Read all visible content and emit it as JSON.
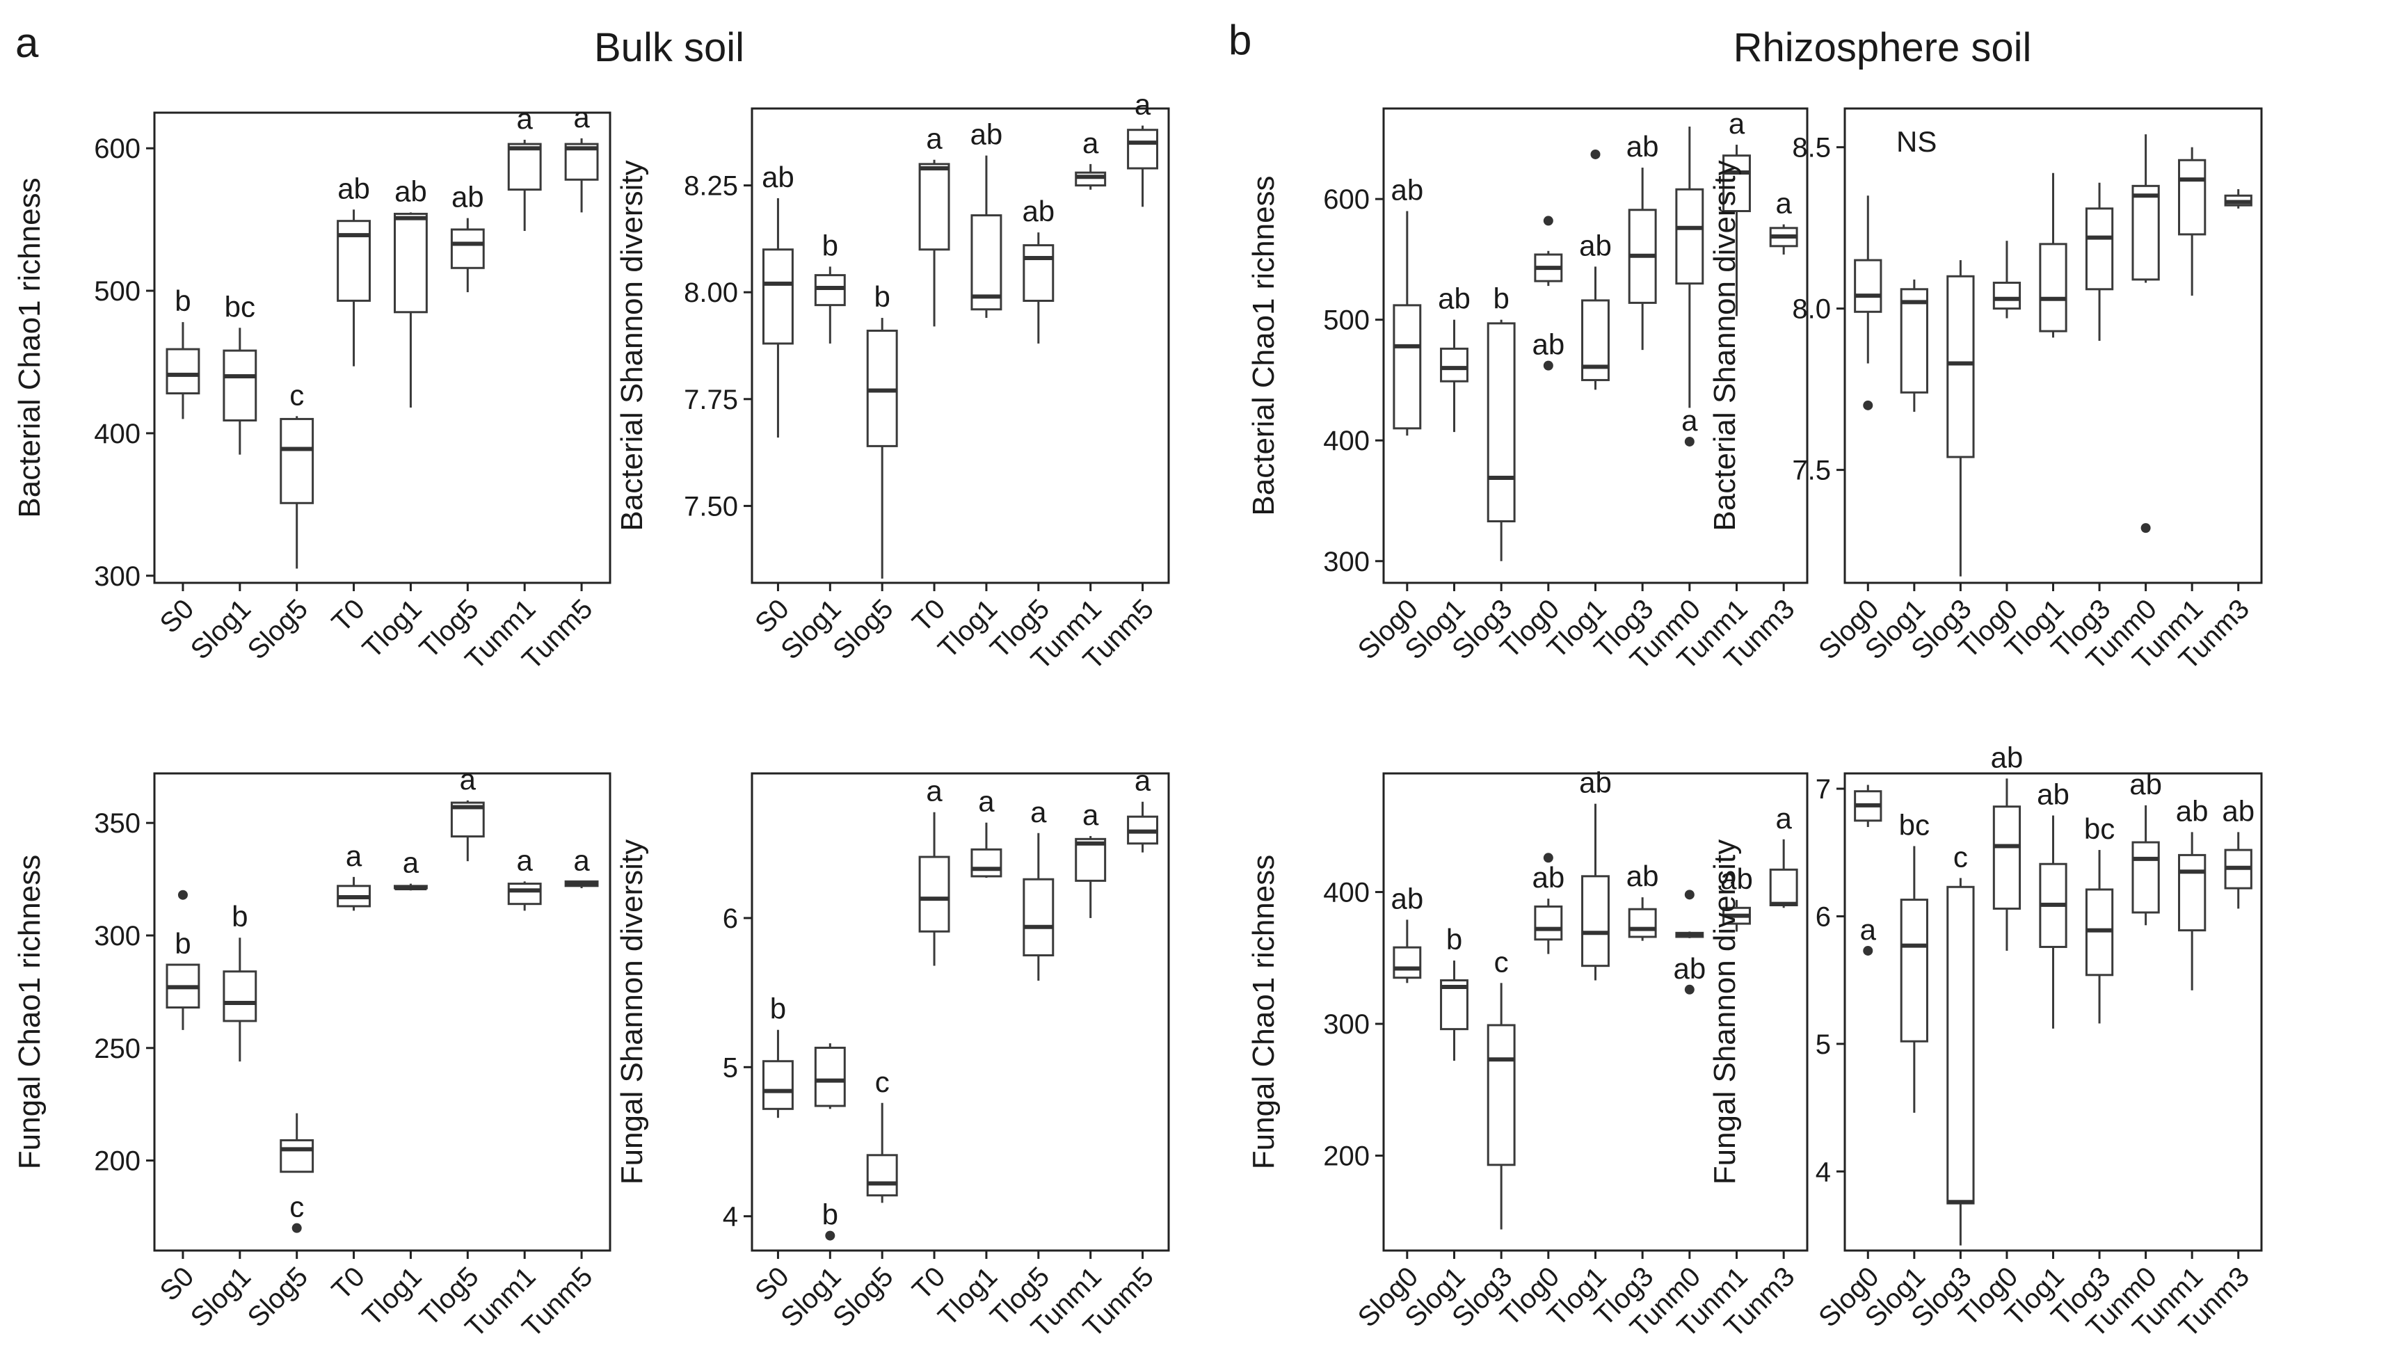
{
  "panels": {
    "a": {
      "letter": "a",
      "title": "Bulk soil"
    },
    "b": {
      "letter": "b",
      "title": "Rhizosphere soil"
    }
  },
  "chart_data": [
    {
      "id": "bulk-bacterial-chao1",
      "type": "box",
      "panel": "a",
      "ylabel": "Bacterial Chao1 richness",
      "ylim": [
        295,
        625
      ],
      "yticks": [
        300,
        400,
        500,
        600
      ],
      "categories": [
        "S0",
        "Slog1",
        "Slog5",
        "T0",
        "Tlog1",
        "Tlog5",
        "Tunm1",
        "Tunm5"
      ],
      "boxes": [
        {
          "min": 410,
          "q1": 428,
          "median": 441,
          "q3": 459,
          "max": 478,
          "outliers": [],
          "label": "b"
        },
        {
          "min": 385,
          "q1": 409,
          "median": 440,
          "q3": 458,
          "max": 474,
          "outliers": [],
          "label": "bc"
        },
        {
          "min": 305,
          "q1": 351,
          "median": 389,
          "q3": 410,
          "max": 412,
          "outliers": [],
          "label": "c"
        },
        {
          "min": 447,
          "q1": 493,
          "median": 539,
          "q3": 549,
          "max": 557,
          "outliers": [],
          "label": "ab"
        },
        {
          "min": 418,
          "q1": 485,
          "median": 551,
          "q3": 554,
          "max": 555,
          "outliers": [],
          "label": "ab"
        },
        {
          "min": 499,
          "q1": 516,
          "median": 533,
          "q3": 543,
          "max": 551,
          "outliers": [],
          "label": "ab"
        },
        {
          "min": 542,
          "q1": 571,
          "median": 600,
          "q3": 603,
          "max": 606,
          "outliers": [],
          "label": "a"
        },
        {
          "min": 555,
          "q1": 578,
          "median": 600,
          "q3": 603,
          "max": 607,
          "outliers": [],
          "label": "a"
        }
      ]
    },
    {
      "id": "bulk-bacterial-shannon",
      "type": "box",
      "panel": "a",
      "ylabel": "Bacterial Shannon diversity",
      "ylim": [
        7.32,
        8.43
      ],
      "yticks": [
        7.5,
        7.75,
        8.0,
        8.25
      ],
      "yticklabels": [
        "7.50",
        "7.75",
        "8.00",
        "8.25"
      ],
      "categories": [
        "S0",
        "Slog1",
        "Slog5",
        "T0",
        "Tlog1",
        "Tlog5",
        "Tunm1",
        "Tunm5"
      ],
      "boxes": [
        {
          "min": 7.66,
          "q1": 7.88,
          "median": 8.02,
          "q3": 8.1,
          "max": 8.22,
          "outliers": [],
          "label": "ab"
        },
        {
          "min": 7.88,
          "q1": 7.97,
          "median": 8.01,
          "q3": 8.04,
          "max": 8.06,
          "outliers": [],
          "label": "b"
        },
        {
          "min": 7.33,
          "q1": 7.64,
          "median": 7.77,
          "q3": 7.91,
          "max": 7.94,
          "outliers": [],
          "label": "b"
        },
        {
          "min": 7.92,
          "q1": 8.1,
          "median": 8.29,
          "q3": 8.3,
          "max": 8.31,
          "outliers": [],
          "label": "a"
        },
        {
          "min": 7.94,
          "q1": 7.96,
          "median": 7.99,
          "q3": 8.18,
          "max": 8.32,
          "outliers": [],
          "label": "ab"
        },
        {
          "min": 7.88,
          "q1": 7.98,
          "median": 8.08,
          "q3": 8.11,
          "max": 8.14,
          "outliers": [],
          "label": "ab"
        },
        {
          "min": 8.24,
          "q1": 8.25,
          "median": 8.27,
          "q3": 8.28,
          "max": 8.3,
          "outliers": [],
          "label": "a"
        },
        {
          "min": 8.2,
          "q1": 8.29,
          "median": 8.35,
          "q3": 8.38,
          "max": 8.39,
          "outliers": [],
          "label": "a"
        }
      ]
    },
    {
      "id": "rhizo-bacterial-chao1",
      "type": "box",
      "panel": "b",
      "ylabel": "Bacterial Chao1 richness",
      "ylim": [
        282,
        675
      ],
      "yticks": [
        300,
        400,
        500,
        600
      ],
      "categories": [
        "Slog0",
        "Slog1",
        "Slog3",
        "Tlog0",
        "Tlog1",
        "Tlog3",
        "Tunm0",
        "Tunm1",
        "Tunm3"
      ],
      "boxes": [
        {
          "min": 404,
          "q1": 410,
          "median": 478,
          "q3": 512,
          "max": 590,
          "outliers": [],
          "label": "ab"
        },
        {
          "min": 407,
          "q1": 449,
          "median": 460,
          "q3": 476,
          "max": 500,
          "outliers": [],
          "label": "ab"
        },
        {
          "min": 300,
          "q1": 333,
          "median": 369,
          "q3": 497,
          "max": 500,
          "outliers": [],
          "label": "b"
        },
        {
          "min": 528,
          "q1": 532,
          "median": 543,
          "q3": 554,
          "max": 557,
          "outliers": [
            582,
            462
          ],
          "label": "ab"
        },
        {
          "min": 442,
          "q1": 450,
          "median": 461,
          "q3": 516,
          "max": 544,
          "outliers": [
            637
          ],
          "label": "ab"
        },
        {
          "min": 475,
          "q1": 514,
          "median": 553,
          "q3": 591,
          "max": 626,
          "outliers": [],
          "label": "ab"
        },
        {
          "min": 427,
          "q1": 530,
          "median": 576,
          "q3": 608,
          "max": 660,
          "outliers": [
            399
          ],
          "label": "a"
        },
        {
          "min": 503,
          "q1": 590,
          "median": 622,
          "q3": 636,
          "max": 645,
          "outliers": [],
          "label": "a"
        },
        {
          "min": 554,
          "q1": 561,
          "median": 569,
          "q3": 576,
          "max": 579,
          "outliers": [],
          "label": "a"
        }
      ]
    },
    {
      "id": "rhizo-bacterial-shannon",
      "type": "box",
      "panel": "b",
      "ylabel": "Bacterial Shannon diversity",
      "ylim": [
        7.15,
        8.62
      ],
      "yticks": [
        7.5,
        8.0,
        8.5
      ],
      "yticklabels": [
        "7.5",
        "8.0",
        "8.5"
      ],
      "annotation": "NS",
      "categories": [
        "Slog0",
        "Slog1",
        "Slog3",
        "Tlog0",
        "Tlog1",
        "Tlog3",
        "Tunm0",
        "Tunm1",
        "Tunm3"
      ],
      "boxes": [
        {
          "min": 7.83,
          "q1": 7.99,
          "median": 8.04,
          "q3": 8.15,
          "max": 8.35,
          "outliers": [
            7.7
          ],
          "label": ""
        },
        {
          "min": 7.68,
          "q1": 7.74,
          "median": 8.02,
          "q3": 8.06,
          "max": 8.09,
          "outliers": [],
          "label": ""
        },
        {
          "min": 7.17,
          "q1": 7.54,
          "median": 7.83,
          "q3": 8.1,
          "max": 8.15,
          "outliers": [],
          "label": ""
        },
        {
          "min": 7.97,
          "q1": 8.0,
          "median": 8.03,
          "q3": 8.08,
          "max": 8.21,
          "outliers": [],
          "label": ""
        },
        {
          "min": 7.91,
          "q1": 7.93,
          "median": 8.03,
          "q3": 8.2,
          "max": 8.42,
          "outliers": [],
          "label": ""
        },
        {
          "min": 7.9,
          "q1": 8.06,
          "median": 8.22,
          "q3": 8.31,
          "max": 8.39,
          "outliers": [],
          "label": ""
        },
        {
          "min": 8.08,
          "q1": 8.09,
          "median": 8.35,
          "q3": 8.38,
          "max": 8.54,
          "outliers": [
            7.32
          ],
          "label": ""
        },
        {
          "min": 8.04,
          "q1": 8.23,
          "median": 8.4,
          "q3": 8.46,
          "max": 8.5,
          "outliers": [],
          "label": ""
        },
        {
          "min": 8.31,
          "q1": 8.32,
          "median": 8.33,
          "q3": 8.35,
          "max": 8.37,
          "outliers": [],
          "label": ""
        }
      ]
    },
    {
      "id": "bulk-fungal-chao1",
      "type": "box",
      "panel": "a",
      "ylabel": "Fungal Chao1 richness",
      "ylim": [
        160,
        372
      ],
      "yticks": [
        200,
        250,
        300,
        350
      ],
      "categories": [
        "S0",
        "Slog1",
        "Slog5",
        "T0",
        "Tlog1",
        "Tlog5",
        "Tunm1",
        "Tunm5"
      ],
      "boxes": [
        {
          "min": 258,
          "q1": 268,
          "median": 277,
          "q3": 287,
          "max": 287,
          "outliers": [
            318
          ],
          "label": "b"
        },
        {
          "min": 244,
          "q1": 262,
          "median": 270,
          "q3": 284,
          "max": 299,
          "outliers": [],
          "label": "b"
        },
        {
          "min": 195,
          "q1": 195,
          "median": 205,
          "q3": 209,
          "max": 221,
          "outliers": [
            170
          ],
          "label": "c"
        },
        {
          "min": 311,
          "q1": 313,
          "median": 317,
          "q3": 322,
          "max": 326,
          "outliers": [],
          "label": "a"
        },
        {
          "min": 320,
          "q1": 321,
          "median": 321,
          "q3": 322,
          "max": 323,
          "outliers": [],
          "label": "a"
        },
        {
          "min": 333,
          "q1": 344,
          "median": 357,
          "q3": 359,
          "max": 360,
          "outliers": [],
          "label": "a"
        },
        {
          "min": 311,
          "q1": 314,
          "median": 320,
          "q3": 323,
          "max": 324,
          "outliers": [],
          "label": "a"
        },
        {
          "min": 321,
          "q1": 322,
          "median": 323,
          "q3": 324,
          "max": 324,
          "outliers": [],
          "label": "a"
        }
      ]
    },
    {
      "id": "bulk-fungal-shannon",
      "type": "box",
      "panel": "a",
      "ylabel": "Fungal Shannon diversity",
      "ylim": [
        3.77,
        6.97
      ],
      "yticks": [
        4,
        5,
        6
      ],
      "categories": [
        "S0",
        "Slog1",
        "Slog5",
        "T0",
        "Tlog1",
        "Tlog5",
        "Tunm1",
        "Tunm5"
      ],
      "boxes": [
        {
          "min": 4.66,
          "q1": 4.72,
          "median": 4.84,
          "q3": 5.04,
          "max": 5.25,
          "outliers": [],
          "label": "b"
        },
        {
          "min": 4.72,
          "q1": 4.74,
          "median": 4.91,
          "q3": 5.13,
          "max": 5.16,
          "outliers": [
            3.87
          ],
          "label": "b"
        },
        {
          "min": 4.09,
          "q1": 4.14,
          "median": 4.22,
          "q3": 4.41,
          "max": 4.76,
          "outliers": [],
          "label": "c"
        },
        {
          "min": 5.68,
          "q1": 5.91,
          "median": 6.13,
          "q3": 6.41,
          "max": 6.71,
          "outliers": [],
          "label": "a"
        },
        {
          "min": 6.27,
          "q1": 6.28,
          "median": 6.33,
          "q3": 6.46,
          "max": 6.64,
          "outliers": [],
          "label": "a"
        },
        {
          "min": 5.58,
          "q1": 5.75,
          "median": 5.94,
          "q3": 6.26,
          "max": 6.57,
          "outliers": [],
          "label": "a"
        },
        {
          "min": 6.0,
          "q1": 6.25,
          "median": 6.5,
          "q3": 6.53,
          "max": 6.55,
          "outliers": [],
          "label": "a"
        },
        {
          "min": 6.44,
          "q1": 6.5,
          "median": 6.58,
          "q3": 6.68,
          "max": 6.78,
          "outliers": [],
          "label": "a"
        }
      ]
    },
    {
      "id": "rhizo-fungal-chao1",
      "type": "box",
      "panel": "b",
      "ylabel": "Fungal Chao1 richness",
      "ylim": [
        128,
        490
      ],
      "yticks": [
        200,
        300,
        400
      ],
      "categories": [
        "Slog0",
        "Slog1",
        "Slog3",
        "Tlog0",
        "Tlog1",
        "Tlog3",
        "Tunm0",
        "Tunm1",
        "Tunm3"
      ],
      "boxes": [
        {
          "min": 331,
          "q1": 335,
          "median": 342,
          "q3": 358,
          "max": 379,
          "outliers": [],
          "label": "ab"
        },
        {
          "min": 272,
          "q1": 296,
          "median": 328,
          "q3": 333,
          "max": 348,
          "outliers": [],
          "label": "b"
        },
        {
          "min": 144,
          "q1": 193,
          "median": 273,
          "q3": 299,
          "max": 331,
          "outliers": [],
          "label": "c"
        },
        {
          "min": 353,
          "q1": 364,
          "median": 372,
          "q3": 389,
          "max": 395,
          "outliers": [
            426
          ],
          "label": "ab"
        },
        {
          "min": 333,
          "q1": 344,
          "median": 369,
          "q3": 412,
          "max": 467,
          "outliers": [],
          "label": "ab"
        },
        {
          "min": 363,
          "q1": 366,
          "median": 372,
          "q3": 387,
          "max": 396,
          "outliers": [],
          "label": "ab"
        },
        {
          "min": 365,
          "q1": 366,
          "median": 368,
          "q3": 369,
          "max": 370,
          "outliers": [
            398,
            326
          ],
          "label": "ab"
        },
        {
          "min": 370,
          "q1": 376,
          "median": 382,
          "q3": 388,
          "max": 394,
          "outliers": [],
          "label": "ab"
        },
        {
          "min": 388,
          "q1": 390,
          "median": 391,
          "q3": 417,
          "max": 440,
          "outliers": [],
          "label": "a"
        }
      ]
    },
    {
      "id": "rhizo-fungal-shannon",
      "type": "box",
      "panel": "b",
      "ylabel": "Fungal Shannon diversity",
      "ylim": [
        3.38,
        7.12
      ],
      "yticks": [
        4,
        5,
        6,
        7
      ],
      "categories": [
        "Slog0",
        "Slog1",
        "Slog3",
        "Tlog0",
        "Tlog1",
        "Tlog3",
        "Tunm0",
        "Tunm1",
        "Tunm3"
      ],
      "boxes": [
        {
          "min": 6.7,
          "q1": 6.75,
          "median": 6.87,
          "q3": 6.98,
          "max": 7.03,
          "outliers": [
            5.73
          ],
          "label": "a"
        },
        {
          "min": 4.46,
          "q1": 5.02,
          "median": 5.77,
          "q3": 6.13,
          "max": 6.55,
          "outliers": [],
          "label": "bc"
        },
        {
          "min": 3.42,
          "q1": 3.75,
          "median": 3.76,
          "q3": 6.23,
          "max": 6.3,
          "outliers": [],
          "label": "c"
        },
        {
          "min": 5.73,
          "q1": 6.06,
          "median": 6.55,
          "q3": 6.86,
          "max": 7.08,
          "outliers": [],
          "label": "ab"
        },
        {
          "min": 5.12,
          "q1": 5.76,
          "median": 6.09,
          "q3": 6.41,
          "max": 6.79,
          "outliers": [],
          "label": "ab"
        },
        {
          "min": 5.16,
          "q1": 5.54,
          "median": 5.89,
          "q3": 6.21,
          "max": 6.52,
          "outliers": [],
          "label": "bc"
        },
        {
          "min": 5.93,
          "q1": 6.03,
          "median": 6.45,
          "q3": 6.58,
          "max": 6.87,
          "outliers": [],
          "label": "ab"
        },
        {
          "min": 5.42,
          "q1": 5.89,
          "median": 6.35,
          "q3": 6.48,
          "max": 6.66,
          "outliers": [],
          "label": "ab"
        },
        {
          "min": 6.06,
          "q1": 6.22,
          "median": 6.38,
          "q3": 6.52,
          "max": 6.66,
          "outliers": [],
          "label": "ab"
        }
      ]
    }
  ]
}
